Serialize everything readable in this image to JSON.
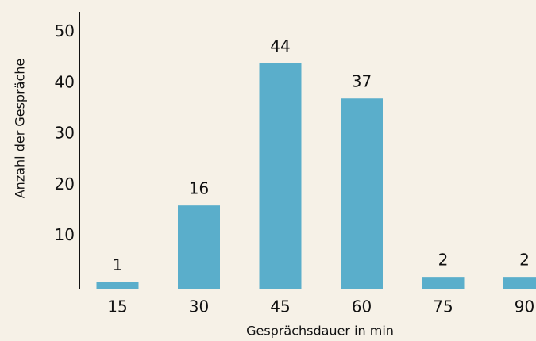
{
  "chart_data": {
    "type": "bar",
    "x_label": "Gesprächsdauer in min",
    "y_label": "Anzahl der Gespräche",
    "categories": [
      "15",
      "30",
      "45",
      "60",
      "75",
      "90"
    ],
    "values": [
      1,
      16,
      44,
      37,
      2,
      2
    ],
    "color": "#5aaecb",
    "ylim": [
      0,
      54
    ],
    "yticks": [
      10,
      20,
      30,
      40,
      50
    ],
    "grid": false
  }
}
